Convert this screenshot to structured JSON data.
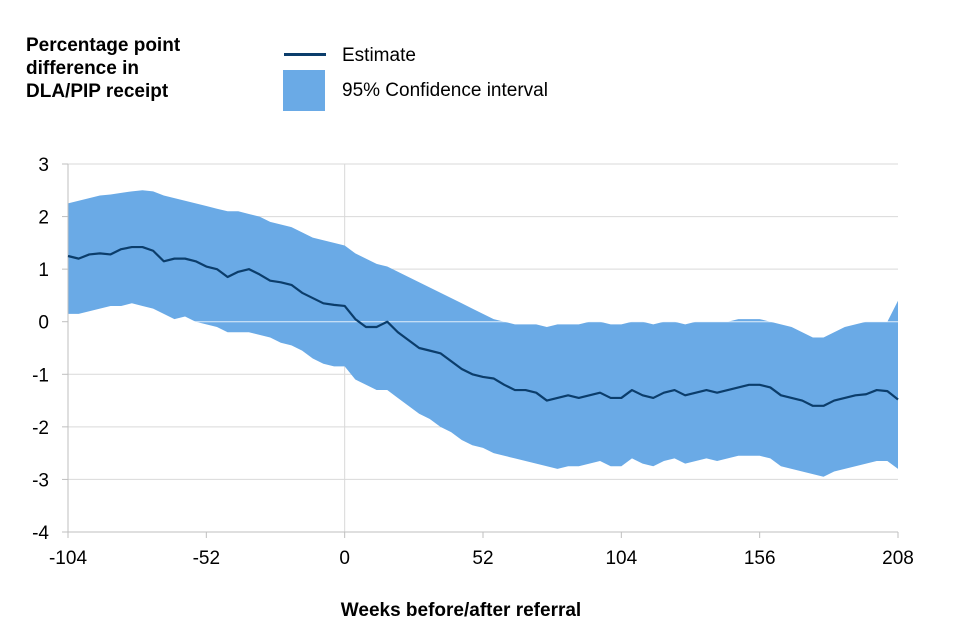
{
  "chart_data": {
    "type": "area",
    "y_title_lines": [
      "Percentage point",
      "difference in",
      "DLA/PIP receipt"
    ],
    "xlabel": "Weeks before/after referral",
    "xlim": [
      -104,
      208
    ],
    "ylim": [
      -4,
      3
    ],
    "xticks": [
      -104,
      -52,
      0,
      52,
      104,
      156,
      208
    ],
    "xtick_labels": [
      "-104",
      "-52",
      "0",
      "52",
      "104",
      "156",
      "208"
    ],
    "yticks": [
      3,
      2,
      1,
      0,
      -1,
      -2,
      -3,
      -4
    ],
    "ytick_labels": [
      "3",
      "2",
      "1",
      "0",
      "-1",
      "-2",
      "-3",
      "-4"
    ],
    "grid": true,
    "legend": {
      "placement": "top",
      "estimate_label": "Estimate",
      "ci_label": "95% Confidence interval"
    },
    "colors": {
      "estimate": "#0b3d6b",
      "ci": "#6aaae6",
      "grid": "#d9d9d9",
      "axis": "#bfbfbf"
    },
    "series": [
      {
        "name": "Estimate",
        "x": [
          -104,
          -100,
          -96,
          -92,
          -88,
          -84,
          -80,
          -76,
          -72,
          -68,
          -64,
          -60,
          -56,
          -52,
          -48,
          -44,
          -40,
          -36,
          -32,
          -28,
          -24,
          -20,
          -16,
          -12,
          -8,
          -4,
          0,
          4,
          8,
          12,
          16,
          20,
          24,
          28,
          32,
          36,
          40,
          44,
          48,
          52,
          56,
          60,
          64,
          68,
          72,
          76,
          80,
          84,
          88,
          92,
          96,
          100,
          104,
          108,
          112,
          116,
          120,
          124,
          128,
          132,
          136,
          140,
          144,
          148,
          152,
          156,
          160,
          164,
          168,
          172,
          176,
          180,
          184,
          188,
          192,
          196,
          200,
          204,
          208
        ],
        "values": [
          1.25,
          1.2,
          1.28,
          1.3,
          1.28,
          1.38,
          1.42,
          1.42,
          1.35,
          1.15,
          1.2,
          1.2,
          1.15,
          1.05,
          1.0,
          0.85,
          0.95,
          1.0,
          0.9,
          0.78,
          0.75,
          0.7,
          0.55,
          0.45,
          0.35,
          0.32,
          0.3,
          0.05,
          -0.1,
          -0.1,
          0.0,
          -0.2,
          -0.35,
          -0.5,
          -0.55,
          -0.6,
          -0.75,
          -0.9,
          -1.0,
          -1.05,
          -1.08,
          -1.2,
          -1.3,
          -1.3,
          -1.35,
          -1.5,
          -1.45,
          -1.4,
          -1.45,
          -1.4,
          -1.35,
          -1.45,
          -1.45,
          -1.3,
          -1.4,
          -1.45,
          -1.35,
          -1.3,
          -1.4,
          -1.35,
          -1.3,
          -1.35,
          -1.3,
          -1.25,
          -1.2,
          -1.2,
          -1.25,
          -1.4,
          -1.45,
          -1.5,
          -1.6,
          -1.6,
          -1.5,
          -1.45,
          -1.4,
          -1.38,
          -1.3,
          -1.32,
          -1.48
        ]
      },
      {
        "name": "95% Confidence interval",
        "x": [
          -104,
          -100,
          -96,
          -92,
          -88,
          -84,
          -80,
          -76,
          -72,
          -68,
          -64,
          -60,
          -56,
          -52,
          -48,
          -44,
          -40,
          -36,
          -32,
          -28,
          -24,
          -20,
          -16,
          -12,
          -8,
          -4,
          0,
          4,
          8,
          12,
          16,
          20,
          24,
          28,
          32,
          36,
          40,
          44,
          48,
          52,
          56,
          60,
          64,
          68,
          72,
          76,
          80,
          84,
          88,
          92,
          96,
          100,
          104,
          108,
          112,
          116,
          120,
          124,
          128,
          132,
          136,
          140,
          144,
          148,
          152,
          156,
          160,
          164,
          168,
          172,
          176,
          180,
          184,
          188,
          192,
          196,
          200,
          204,
          208
        ],
        "upper": [
          2.25,
          2.3,
          2.35,
          2.4,
          2.42,
          2.45,
          2.48,
          2.5,
          2.48,
          2.4,
          2.35,
          2.3,
          2.25,
          2.2,
          2.15,
          2.1,
          2.1,
          2.05,
          2.0,
          1.9,
          1.85,
          1.8,
          1.7,
          1.6,
          1.55,
          1.5,
          1.45,
          1.3,
          1.2,
          1.1,
          1.05,
          0.95,
          0.85,
          0.75,
          0.65,
          0.55,
          0.45,
          0.35,
          0.25,
          0.15,
          0.05,
          0.0,
          -0.05,
          -0.05,
          -0.05,
          -0.1,
          -0.05,
          -0.05,
          -0.05,
          0.0,
          0.0,
          -0.05,
          -0.05,
          0.0,
          0.0,
          -0.05,
          0.0,
          0.0,
          -0.05,
          0.0,
          0.0,
          0.0,
          0.0,
          0.05,
          0.05,
          0.05,
          0.0,
          -0.05,
          -0.1,
          -0.2,
          -0.3,
          -0.3,
          -0.2,
          -0.1,
          -0.05,
          0.0,
          0.0,
          0.0,
          0.4
        ],
        "lower": [
          0.15,
          0.15,
          0.2,
          0.25,
          0.3,
          0.3,
          0.35,
          0.3,
          0.25,
          0.15,
          0.05,
          0.1,
          0.0,
          -0.05,
          -0.1,
          -0.2,
          -0.2,
          -0.2,
          -0.25,
          -0.3,
          -0.4,
          -0.45,
          -0.55,
          -0.7,
          -0.8,
          -0.85,
          -0.85,
          -1.1,
          -1.2,
          -1.3,
          -1.3,
          -1.45,
          -1.6,
          -1.75,
          -1.85,
          -2.0,
          -2.1,
          -2.25,
          -2.35,
          -2.4,
          -2.5,
          -2.55,
          -2.6,
          -2.65,
          -2.7,
          -2.75,
          -2.8,
          -2.75,
          -2.75,
          -2.7,
          -2.65,
          -2.75,
          -2.75,
          -2.6,
          -2.7,
          -2.75,
          -2.65,
          -2.6,
          -2.7,
          -2.65,
          -2.6,
          -2.65,
          -2.6,
          -2.55,
          -2.55,
          -2.55,
          -2.6,
          -2.75,
          -2.8,
          -2.85,
          -2.9,
          -2.95,
          -2.85,
          -2.8,
          -2.75,
          -2.7,
          -2.65,
          -2.65,
          -2.8
        ]
      }
    ]
  }
}
